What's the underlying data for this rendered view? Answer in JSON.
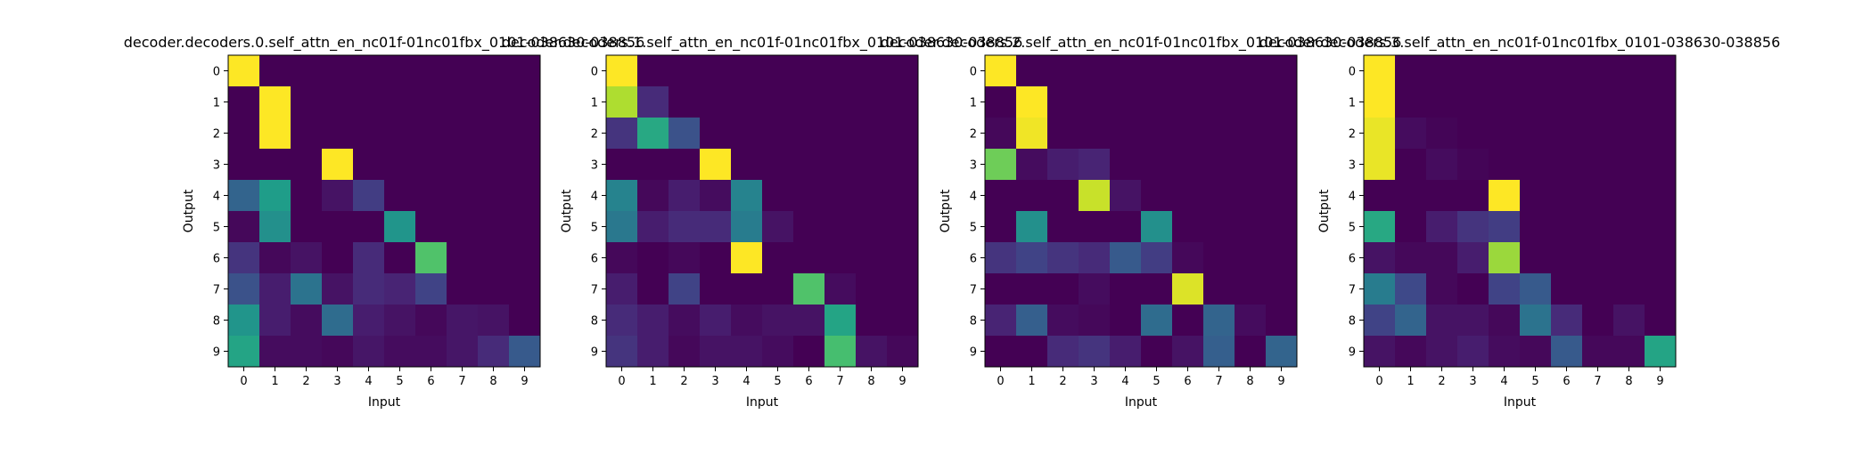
{
  "chart_data": [
    {
      "type": "heatmap",
      "title": "decoder.decoders.0.self_attn_en_nc01f-01nc01fbx_0101-038630-038856",
      "xlabel": "Input",
      "ylabel": "Output",
      "x_ticks": [
        "0",
        "1",
        "2",
        "3",
        "4",
        "5",
        "6",
        "7",
        "8",
        "9"
      ],
      "y_ticks": [
        "0",
        "1",
        "2",
        "3",
        "4",
        "5",
        "6",
        "7",
        "8",
        "9"
      ],
      "colormap": "viridis",
      "zlim": [
        0,
        1
      ],
      "values": [
        [
          1.0,
          0.0,
          0.0,
          0.0,
          0.0,
          0.0,
          0.0,
          0.0,
          0.0,
          0.0
        ],
        [
          0.0,
          1.0,
          0.0,
          0.0,
          0.0,
          0.0,
          0.0,
          0.0,
          0.0,
          0.0
        ],
        [
          0.0,
          1.0,
          0.0,
          0.0,
          0.0,
          0.0,
          0.0,
          0.0,
          0.0,
          0.0
        ],
        [
          0.0,
          0.0,
          0.0,
          1.0,
          0.0,
          0.0,
          0.0,
          0.0,
          0.0,
          0.0
        ],
        [
          0.32,
          0.55,
          0.0,
          0.05,
          0.18,
          0.0,
          0.0,
          0.0,
          0.0,
          0.0
        ],
        [
          0.02,
          0.5,
          0.0,
          0.0,
          0.0,
          0.52,
          0.0,
          0.0,
          0.0,
          0.0
        ],
        [
          0.15,
          0.02,
          0.05,
          0.0,
          0.12,
          0.0,
          0.72,
          0.0,
          0.0,
          0.0
        ],
        [
          0.25,
          0.08,
          0.38,
          0.05,
          0.12,
          0.1,
          0.2,
          0.0,
          0.0,
          0.0
        ],
        [
          0.52,
          0.08,
          0.03,
          0.35,
          0.08,
          0.05,
          0.02,
          0.06,
          0.05,
          0.0
        ],
        [
          0.58,
          0.03,
          0.03,
          0.02,
          0.06,
          0.03,
          0.03,
          0.06,
          0.12,
          0.28
        ]
      ]
    },
    {
      "type": "heatmap",
      "title": "decoder.decoders.1.self_attn_en_nc01f-01nc01fbx_0101-038630-038856",
      "xlabel": "Input",
      "ylabel": "Output",
      "x_ticks": [
        "0",
        "1",
        "2",
        "3",
        "4",
        "5",
        "6",
        "7",
        "8",
        "9"
      ],
      "y_ticks": [
        "0",
        "1",
        "2",
        "3",
        "4",
        "5",
        "6",
        "7",
        "8",
        "9"
      ],
      "colormap": "viridis",
      "zlim": [
        0,
        1
      ],
      "values": [
        [
          1.0,
          0.0,
          0.0,
          0.0,
          0.0,
          0.0,
          0.0,
          0.0,
          0.0,
          0.0
        ],
        [
          0.88,
          0.12,
          0.0,
          0.0,
          0.0,
          0.0,
          0.0,
          0.0,
          0.0,
          0.0
        ],
        [
          0.15,
          0.6,
          0.25,
          0.0,
          0.0,
          0.0,
          0.0,
          0.0,
          0.0,
          0.0
        ],
        [
          0.0,
          0.0,
          0.0,
          1.0,
          0.0,
          0.0,
          0.0,
          0.0,
          0.0,
          0.0
        ],
        [
          0.45,
          0.02,
          0.08,
          0.03,
          0.45,
          0.0,
          0.0,
          0.0,
          0.0,
          0.0
        ],
        [
          0.4,
          0.08,
          0.12,
          0.12,
          0.42,
          0.05,
          0.0,
          0.0,
          0.0,
          0.0
        ],
        [
          0.02,
          0.0,
          0.02,
          0.0,
          1.0,
          0.0,
          0.0,
          0.0,
          0.0,
          0.0
        ],
        [
          0.08,
          0.0,
          0.2,
          0.0,
          0.0,
          0.0,
          0.72,
          0.03,
          0.0,
          0.0
        ],
        [
          0.12,
          0.08,
          0.03,
          0.08,
          0.03,
          0.05,
          0.05,
          0.58,
          0.0,
          0.0
        ],
        [
          0.15,
          0.08,
          0.02,
          0.05,
          0.05,
          0.03,
          0.0,
          0.7,
          0.05,
          0.02
        ]
      ]
    },
    {
      "type": "heatmap",
      "title": "decoder.decoders.2.self_attn_en_nc01f-01nc01fbx_0101-038630-038856",
      "xlabel": "Input",
      "ylabel": "Output",
      "x_ticks": [
        "0",
        "1",
        "2",
        "3",
        "4",
        "5",
        "6",
        "7",
        "8",
        "9"
      ],
      "y_ticks": [
        "0",
        "1",
        "2",
        "3",
        "4",
        "5",
        "6",
        "7",
        "8",
        "9"
      ],
      "colormap": "viridis",
      "zlim": [
        0,
        1
      ],
      "values": [
        [
          1.0,
          0.0,
          0.0,
          0.0,
          0.0,
          0.0,
          0.0,
          0.0,
          0.0,
          0.0
        ],
        [
          0.0,
          1.0,
          0.0,
          0.0,
          0.0,
          0.0,
          0.0,
          0.0,
          0.0,
          0.0
        ],
        [
          0.02,
          0.98,
          0.0,
          0.0,
          0.0,
          0.0,
          0.0,
          0.0,
          0.0,
          0.0
        ],
        [
          0.78,
          0.03,
          0.08,
          0.1,
          0.0,
          0.0,
          0.0,
          0.0,
          0.0,
          0.0
        ],
        [
          0.0,
          0.0,
          0.0,
          0.92,
          0.05,
          0.0,
          0.0,
          0.0,
          0.0,
          0.0
        ],
        [
          0.0,
          0.5,
          0.0,
          0.0,
          0.0,
          0.5,
          0.0,
          0.0,
          0.0,
          0.0
        ],
        [
          0.15,
          0.2,
          0.15,
          0.12,
          0.28,
          0.18,
          0.02,
          0.0,
          0.0,
          0.0
        ],
        [
          0.0,
          0.0,
          0.0,
          0.03,
          0.0,
          0.0,
          0.95,
          0.0,
          0.0,
          0.0
        ],
        [
          0.1,
          0.3,
          0.03,
          0.02,
          0.0,
          0.35,
          0.0,
          0.32,
          0.03,
          0.0
        ],
        [
          0.0,
          0.0,
          0.12,
          0.15,
          0.08,
          0.0,
          0.05,
          0.3,
          0.0,
          0.32
        ]
      ]
    },
    {
      "type": "heatmap",
      "title": "decoder.decoders.3.self_attn_en_nc01f-01nc01fbx_0101-038630-038856",
      "xlabel": "Input",
      "ylabel": "Output",
      "x_ticks": [
        "0",
        "1",
        "2",
        "3",
        "4",
        "5",
        "6",
        "7",
        "8",
        "9"
      ],
      "y_ticks": [
        "0",
        "1",
        "2",
        "3",
        "4",
        "5",
        "6",
        "7",
        "8",
        "9"
      ],
      "colormap": "viridis",
      "zlim": [
        0,
        1
      ],
      "values": [
        [
          1.0,
          0.0,
          0.0,
          0.0,
          0.0,
          0.0,
          0.0,
          0.0,
          0.0,
          0.0
        ],
        [
          1.0,
          0.0,
          0.0,
          0.0,
          0.0,
          0.0,
          0.0,
          0.0,
          0.0,
          0.0
        ],
        [
          0.97,
          0.03,
          0.01,
          0.0,
          0.0,
          0.0,
          0.0,
          0.0,
          0.0,
          0.0
        ],
        [
          0.97,
          0.0,
          0.03,
          0.01,
          0.0,
          0.0,
          0.0,
          0.0,
          0.0,
          0.0
        ],
        [
          0.0,
          0.0,
          0.0,
          0.0,
          1.0,
          0.0,
          0.0,
          0.0,
          0.0,
          0.0
        ],
        [
          0.6,
          0.0,
          0.08,
          0.15,
          0.18,
          0.0,
          0.0,
          0.0,
          0.0,
          0.0
        ],
        [
          0.05,
          0.02,
          0.02,
          0.08,
          0.85,
          0.0,
          0.0,
          0.0,
          0.0,
          0.0
        ],
        [
          0.42,
          0.22,
          0.02,
          0.0,
          0.2,
          0.28,
          0.0,
          0.0,
          0.0,
          0.0
        ],
        [
          0.2,
          0.32,
          0.05,
          0.05,
          0.02,
          0.38,
          0.12,
          0.0,
          0.05,
          0.0
        ],
        [
          0.05,
          0.02,
          0.05,
          0.08,
          0.03,
          0.02,
          0.28,
          0.02,
          0.02,
          0.58
        ]
      ]
    }
  ]
}
